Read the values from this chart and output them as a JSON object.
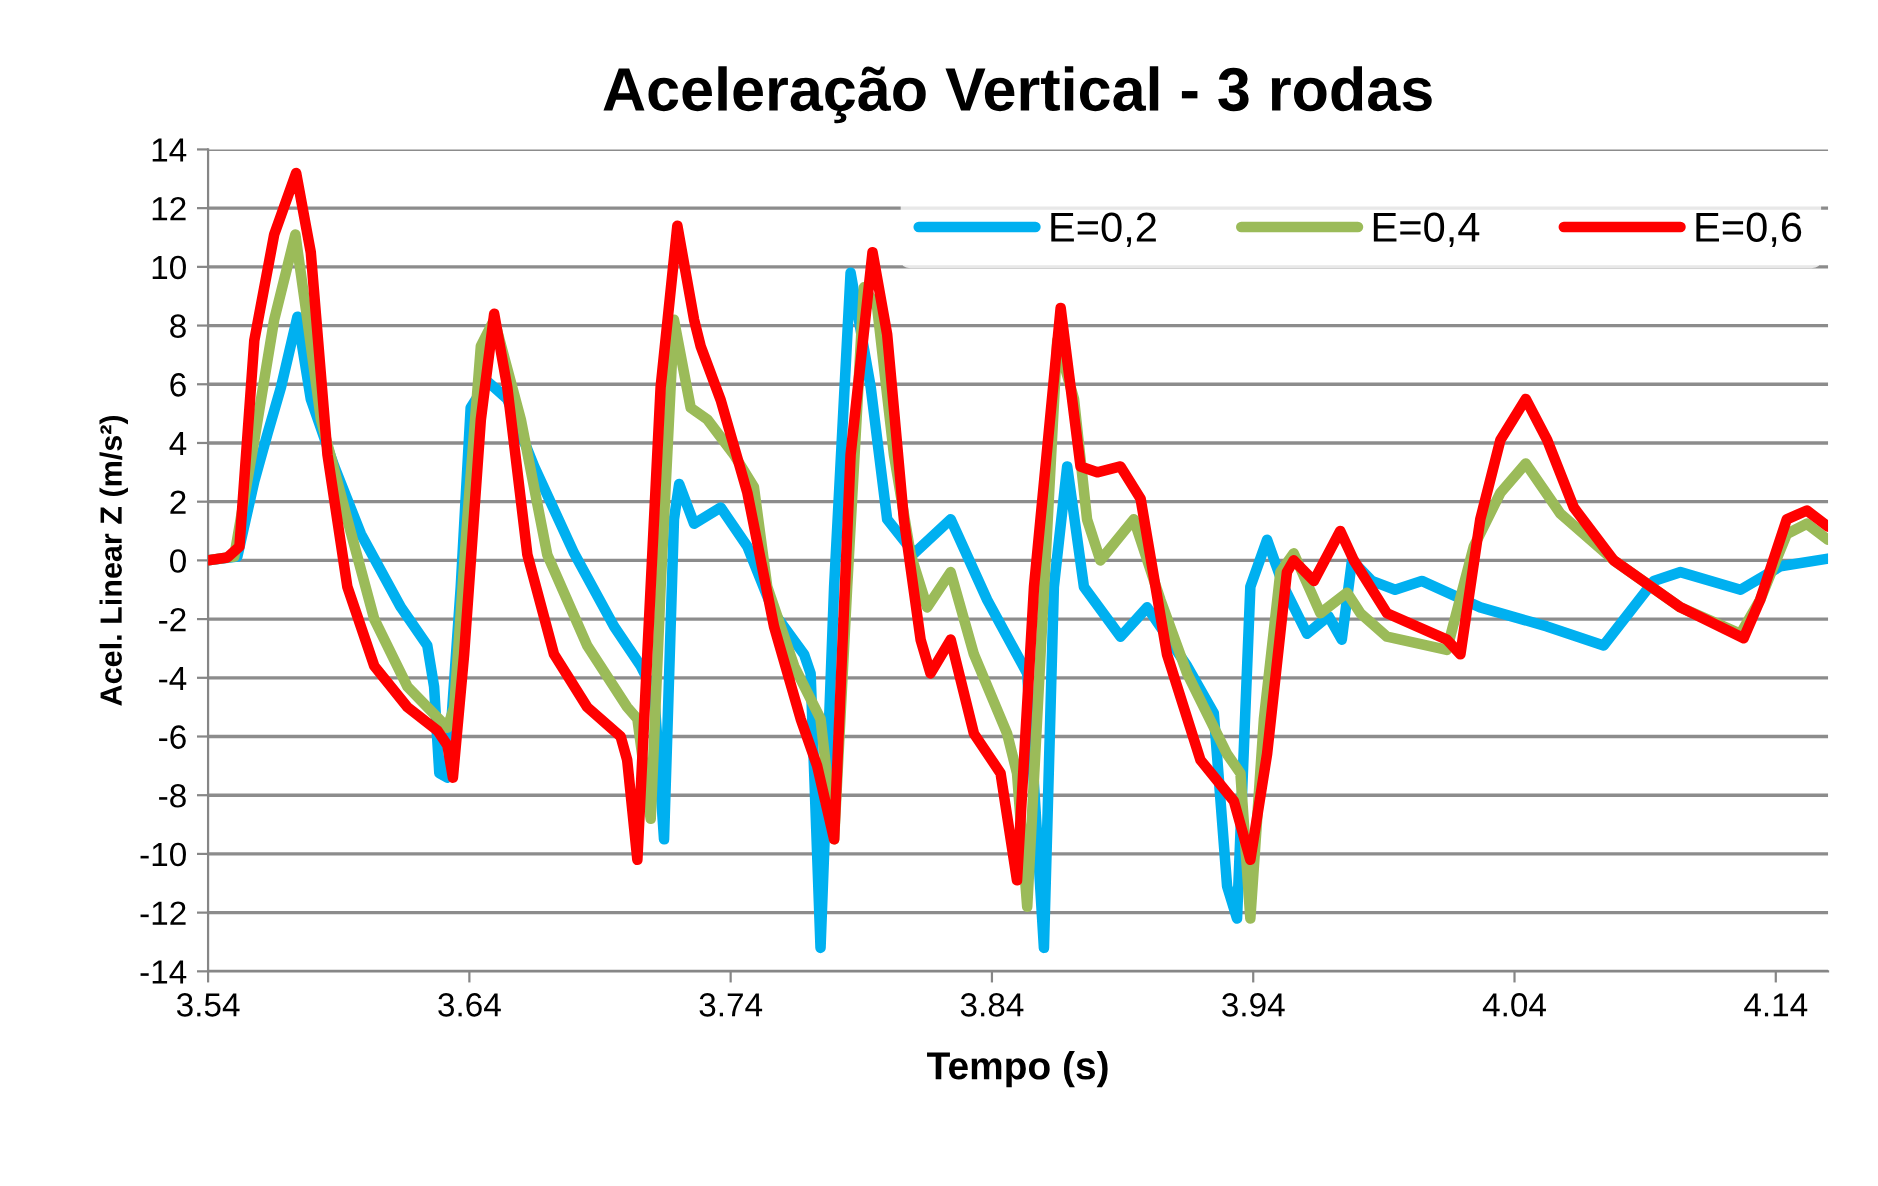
{
  "chart_data": {
    "type": "line",
    "title": "Aceleração Vertical - 3 rodas",
    "xlabel": "Tempo (s)",
    "ylabel": "Acel. Linear Z (m/s²)",
    "xlim": [
      3.54,
      4.16
    ],
    "xticks": [
      3.54,
      3.64,
      3.74,
      3.84,
      3.94,
      4.04,
      4.14
    ],
    "ylim": [
      -14,
      14
    ],
    "yticks": [
      -14,
      -12,
      -10,
      -8,
      -6,
      -4,
      -2,
      0,
      2,
      4,
      6,
      8,
      10,
      12,
      14
    ],
    "grid": "y",
    "legend": "top right",
    "marker": "none",
    "line_style": "solid",
    "series": [
      {
        "name": "E=0,2",
        "color": "#00b0f0",
        "x": [
          3.54,
          3.5512,
          3.5577,
          3.5627,
          3.5679,
          3.5742,
          3.5793,
          3.5883,
          3.5985,
          3.6138,
          3.6239,
          3.6265,
          3.6285,
          3.6316,
          3.6367,
          3.6405,
          3.6469,
          3.6545,
          3.6648,
          3.6801,
          3.6954,
          3.7056,
          3.7107,
          3.7145,
          3.7183,
          3.7203,
          3.726,
          3.7362,
          3.7464,
          3.7566,
          3.7681,
          3.7706,
          3.7744,
          3.7796,
          3.7859,
          3.7936,
          3.7999,
          3.8102,
          3.8242,
          3.8382,
          3.8535,
          3.8599,
          3.8637,
          3.8688,
          3.8752,
          3.8892,
          3.8994,
          3.9147,
          3.9249,
          3.93,
          3.9338,
          3.9389,
          3.9453,
          3.9517,
          3.9606,
          3.9688,
          3.9739,
          3.9778,
          3.9854,
          3.9943,
          4.0045,
          4.0269,
          4.0524,
          4.0741,
          4.0933,
          4.1035,
          4.1265,
          4.1418,
          4.16
        ],
        "values": [
          0,
          0.13,
          2.7,
          4.3,
          5.9,
          8.3,
          5.5,
          3.2,
          0.9,
          -1.6,
          -2.9,
          -4.3,
          -7.25,
          -7.4,
          -0.9,
          5.2,
          6.1,
          5.5,
          3.2,
          0.24,
          -2.25,
          -3.6,
          -4.5,
          -9.5,
          1.4,
          2.6,
          1.25,
          1.8,
          0.47,
          -1.8,
          -3.2,
          -3.85,
          -13.2,
          -0.9,
          9.8,
          5.9,
          1.4,
          0.24,
          1.4,
          -1.35,
          -3.85,
          -13.2,
          -0.9,
          3.2,
          -0.9,
          -2.6,
          -1.6,
          -3.6,
          -5.2,
          -11.1,
          -12.2,
          -0.9,
          0.7,
          -0.9,
          -2.5,
          -1.9,
          -2.7,
          0,
          -0.7,
          -1.0,
          -0.7,
          -1.6,
          -2.25,
          -2.9,
          -0.7,
          -0.4,
          -1.0,
          -0.2,
          0.06
        ]
      },
      {
        "name": "E=0,4",
        "color": "#9bbb59",
        "x": [
          3.54,
          3.55,
          3.5577,
          3.5653,
          3.5734,
          3.578,
          3.5832,
          3.5933,
          3.6036,
          3.6163,
          3.6316,
          3.6342,
          3.6392,
          3.6444,
          3.6495,
          3.6597,
          3.6698,
          3.6851,
          3.7004,
          3.7043,
          3.7094,
          3.7132,
          3.7183,
          3.7247,
          3.7311,
          3.7413,
          3.7489,
          3.754,
          3.7643,
          3.7744,
          3.7796,
          3.7846,
          3.791,
          3.7961,
          3.8025,
          3.8089,
          3.8152,
          3.8242,
          3.8331,
          3.8458,
          3.8496,
          3.8535,
          3.8586,
          3.865,
          3.8714,
          3.8764,
          3.8815,
          3.8943,
          3.9045,
          3.9147,
          3.93,
          3.9351,
          3.9389,
          3.9441,
          3.9504,
          3.9555,
          3.9657,
          3.9759,
          3.981,
          3.9912,
          4.0141,
          4.0244,
          4.0346,
          4.0443,
          4.0575,
          4.078,
          4.1035,
          4.1265,
          4.134,
          4.1442,
          4.1519,
          4.16
        ],
        "values": [
          0,
          0.13,
          4.1,
          8.2,
          11.1,
          8.2,
          4.8,
          1.4,
          -2.0,
          -4.3,
          -5.7,
          -5.0,
          1.4,
          7.3,
          8.2,
          4.8,
          0.2,
          -2.9,
          -5.0,
          -5.4,
          -8.8,
          -0.9,
          8.2,
          5.2,
          4.8,
          3.6,
          2.5,
          -0.9,
          -3.6,
          -5.4,
          -9.5,
          -0.9,
          9.3,
          8.6,
          3.6,
          0.2,
          -1.6,
          -0.4,
          -3.2,
          -5.9,
          -7.25,
          -11.8,
          -3.2,
          7.5,
          5.5,
          1.4,
          0,
          1.4,
          -1.35,
          -3.85,
          -6.6,
          -7.25,
          -12.2,
          -5.4,
          -0.4,
          0.24,
          -1.8,
          -1.1,
          -1.8,
          -2.6,
          -3.05,
          0.47,
          2.3,
          3.3,
          1.6,
          0,
          -1.6,
          -2.5,
          -1.35,
          0.9,
          1.25,
          0.7
        ]
      },
      {
        "name": "E=0,6",
        "color": "#ff0000",
        "x": [
          3.54,
          3.5474,
          3.552,
          3.5577,
          3.5653,
          3.5737,
          3.5793,
          3.5857,
          3.5933,
          3.6036,
          3.6163,
          3.6278,
          3.6316,
          3.6337,
          3.638,
          3.6444,
          3.6495,
          3.6545,
          3.6622,
          3.6724,
          3.6851,
          3.6979,
          3.7004,
          3.7043,
          3.7081,
          3.7132,
          3.7196,
          3.726,
          3.7285,
          3.7362,
          3.7464,
          3.7566,
          3.7668,
          3.7731,
          3.7796,
          3.7859,
          3.7943,
          3.7999,
          3.8063,
          3.8127,
          3.8165,
          3.8242,
          3.8331,
          3.8433,
          3.8496,
          3.8561,
          3.8663,
          3.8739,
          3.8803,
          3.8892,
          3.8969,
          3.907,
          3.9198,
          3.9326,
          3.9389,
          3.9453,
          3.9529,
          3.9555,
          3.9632,
          3.9733,
          3.9785,
          3.9912,
          4.0141,
          4.0193,
          4.0269,
          4.0346,
          4.0443,
          4.0525,
          4.0627,
          4.078,
          4.1035,
          4.1277,
          4.134,
          4.1442,
          4.1519,
          4.16
        ],
        "values": [
          0,
          0.1,
          0.47,
          7.5,
          11.1,
          13.2,
          10.5,
          3.6,
          -0.9,
          -3.6,
          -5.0,
          -5.8,
          -6.3,
          -7.4,
          -3.2,
          4.8,
          8.4,
          5.9,
          0.2,
          -3.2,
          -5.0,
          -6.0,
          -6.8,
          -10.2,
          -3.2,
          5.9,
          11.4,
          8.2,
          7.3,
          5.46,
          2.3,
          -2.25,
          -5.4,
          -7.0,
          -9.5,
          3.6,
          10.5,
          7.7,
          1.4,
          -2.7,
          -3.85,
          -2.7,
          -5.9,
          -7.25,
          -10.9,
          -0.9,
          8.6,
          3.2,
          3.0,
          3.2,
          2.1,
          -3.2,
          -6.8,
          -8.2,
          -10.2,
          -6.6,
          -0.4,
          0,
          -0.7,
          1.0,
          0,
          -1.8,
          -2.7,
          -3.2,
          1.4,
          4.1,
          5.5,
          4.1,
          1.8,
          0,
          -1.6,
          -2.65,
          -1.35,
          1.4,
          1.7,
          1.15
        ]
      }
    ]
  }
}
